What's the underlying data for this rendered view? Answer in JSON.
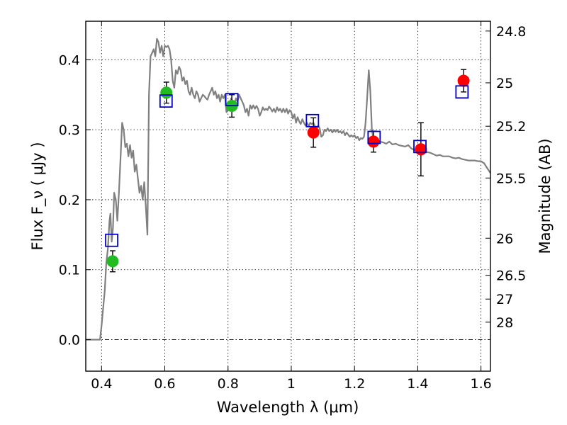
{
  "chart_data": {
    "type": "scatter",
    "xlabel": "Wavelength  λ (μm)",
    "ylabel": "Flux  F_ν  ( μJy )",
    "y2label": "Magnitude (AB)",
    "xlim": [
      0.35,
      1.63
    ],
    "ylim": [
      -0.045,
      0.455
    ],
    "xticks": [
      0.4,
      0.6,
      0.8,
      1.0,
      1.2,
      1.4,
      1.6
    ],
    "xtick_labels": [
      "0.4",
      "0.6",
      "0.8",
      "1",
      "1.2",
      "1.4",
      "1.6"
    ],
    "yticks": [
      0.0,
      0.1,
      0.2,
      0.3,
      0.4
    ],
    "ytick_labels": [
      "0.0",
      "0.1",
      "0.2",
      "0.3",
      "0.4"
    ],
    "y2ticks": [
      {
        "label": "24.8",
        "flux": 0.441
      },
      {
        "label": "25",
        "flux": 0.367
      },
      {
        "label": "25.2",
        "flux": 0.305
      },
      {
        "label": "25.5",
        "flux": 0.231
      },
      {
        "label": "26",
        "flux": 0.145
      },
      {
        "label": "26.5",
        "flux": 0.092
      },
      {
        "label": "27",
        "flux": 0.058
      },
      {
        "label": "28",
        "flux": 0.025
      }
    ],
    "grid": true,
    "zero_line": true,
    "colors": {
      "model": "#808080",
      "green": "#22bb22",
      "red": "#ff0000",
      "box": "#0000cc",
      "errorbar": "#000000"
    },
    "series": [
      {
        "type": "line",
        "color": "#808080",
        "points": [
          [
            0.35,
            0.0
          ],
          [
            0.395,
            0.0
          ],
          [
            0.4,
            0.02
          ],
          [
            0.41,
            0.07
          ],
          [
            0.415,
            0.11
          ],
          [
            0.42,
            0.13
          ],
          [
            0.425,
            0.17
          ],
          [
            0.428,
            0.18
          ],
          [
            0.432,
            0.14
          ],
          [
            0.436,
            0.16
          ],
          [
            0.44,
            0.21
          ],
          [
            0.445,
            0.2
          ],
          [
            0.45,
            0.17
          ],
          [
            0.455,
            0.21
          ],
          [
            0.46,
            0.26
          ],
          [
            0.465,
            0.31
          ],
          [
            0.47,
            0.3
          ],
          [
            0.475,
            0.275
          ],
          [
            0.48,
            0.28
          ],
          [
            0.485,
            0.262
          ],
          [
            0.49,
            0.278
          ],
          [
            0.495,
            0.26
          ],
          [
            0.5,
            0.27
          ],
          [
            0.505,
            0.24
          ],
          [
            0.51,
            0.25
          ],
          [
            0.515,
            0.23
          ],
          [
            0.52,
            0.21
          ],
          [
            0.525,
            0.22
          ],
          [
            0.53,
            0.2
          ],
          [
            0.535,
            0.225
          ],
          [
            0.54,
            0.19
          ],
          [
            0.545,
            0.15
          ],
          [
            0.55,
            0.35
          ],
          [
            0.555,
            0.405
          ],
          [
            0.56,
            0.41
          ],
          [
            0.565,
            0.415
          ],
          [
            0.57,
            0.405
          ],
          [
            0.575,
            0.43
          ],
          [
            0.58,
            0.425
          ],
          [
            0.585,
            0.41
          ],
          [
            0.59,
            0.42
          ],
          [
            0.595,
            0.405
          ],
          [
            0.6,
            0.42
          ],
          [
            0.605,
            0.418
          ],
          [
            0.61,
            0.42
          ],
          [
            0.615,
            0.415
          ],
          [
            0.62,
            0.4
          ],
          [
            0.625,
            0.37
          ],
          [
            0.63,
            0.36
          ],
          [
            0.635,
            0.385
          ],
          [
            0.64,
            0.38
          ],
          [
            0.645,
            0.39
          ],
          [
            0.65,
            0.385
          ],
          [
            0.655,
            0.37
          ],
          [
            0.66,
            0.375
          ],
          [
            0.665,
            0.365
          ],
          [
            0.67,
            0.37
          ],
          [
            0.675,
            0.355
          ],
          [
            0.68,
            0.35
          ],
          [
            0.685,
            0.36
          ],
          [
            0.69,
            0.35
          ],
          [
            0.695,
            0.345
          ],
          [
            0.7,
            0.355
          ],
          [
            0.705,
            0.35
          ],
          [
            0.71,
            0.34
          ],
          [
            0.715,
            0.345
          ],
          [
            0.72,
            0.35
          ],
          [
            0.725,
            0.348
          ],
          [
            0.73,
            0.345
          ],
          [
            0.735,
            0.343
          ],
          [
            0.74,
            0.35
          ],
          [
            0.745,
            0.355
          ],
          [
            0.75,
            0.36
          ],
          [
            0.755,
            0.35
          ],
          [
            0.76,
            0.355
          ],
          [
            0.765,
            0.345
          ],
          [
            0.77,
            0.35
          ],
          [
            0.775,
            0.34
          ],
          [
            0.78,
            0.35
          ],
          [
            0.785,
            0.345
          ],
          [
            0.79,
            0.35
          ],
          [
            0.795,
            0.325
          ],
          [
            0.8,
            0.33
          ],
          [
            0.805,
            0.335
          ],
          [
            0.81,
            0.345
          ],
          [
            0.815,
            0.34
          ],
          [
            0.82,
            0.335
          ],
          [
            0.825,
            0.345
          ],
          [
            0.83,
            0.34
          ],
          [
            0.835,
            0.35
          ],
          [
            0.84,
            0.345
          ],
          [
            0.845,
            0.34
          ],
          [
            0.85,
            0.335
          ],
          [
            0.855,
            0.325
          ],
          [
            0.86,
            0.33
          ],
          [
            0.865,
            0.32
          ],
          [
            0.87,
            0.335
          ],
          [
            0.875,
            0.33
          ],
          [
            0.88,
            0.335
          ],
          [
            0.885,
            0.33
          ],
          [
            0.89,
            0.334
          ],
          [
            0.895,
            0.33
          ],
          [
            0.9,
            0.32
          ],
          [
            0.905,
            0.325
          ],
          [
            0.91,
            0.332
          ],
          [
            0.915,
            0.328
          ],
          [
            0.92,
            0.33
          ],
          [
            0.925,
            0.328
          ],
          [
            0.93,
            0.333
          ],
          [
            0.935,
            0.33
          ],
          [
            0.94,
            0.326
          ],
          [
            0.945,
            0.33
          ],
          [
            0.95,
            0.325
          ],
          [
            0.955,
            0.332
          ],
          [
            0.96,
            0.327
          ],
          [
            0.965,
            0.33
          ],
          [
            0.97,
            0.325
          ],
          [
            0.975,
            0.33
          ],
          [
            0.98,
            0.325
          ],
          [
            0.985,
            0.33
          ],
          [
            0.99,
            0.323
          ],
          [
            0.995,
            0.328
          ],
          [
            1.0,
            0.325
          ],
          [
            1.005,
            0.316
          ],
          [
            1.01,
            0.322
          ],
          [
            1.015,
            0.31
          ],
          [
            1.02,
            0.318
          ],
          [
            1.025,
            0.312
          ],
          [
            1.03,
            0.308
          ],
          [
            1.035,
            0.315
          ],
          [
            1.04,
            0.31
          ],
          [
            1.045,
            0.306
          ],
          [
            1.05,
            0.31
          ],
          [
            1.055,
            0.305
          ],
          [
            1.06,
            0.31
          ],
          [
            1.065,
            0.308
          ],
          [
            1.07,
            0.31
          ],
          [
            1.075,
            0.305
          ],
          [
            1.08,
            0.3
          ],
          [
            1.085,
            0.306
          ],
          [
            1.09,
            0.302
          ],
          [
            1.095,
            0.29
          ],
          [
            1.1,
            0.292
          ],
          [
            1.105,
            0.3
          ],
          [
            1.11,
            0.298
          ],
          [
            1.115,
            0.302
          ],
          [
            1.12,
            0.298
          ],
          [
            1.125,
            0.3
          ],
          [
            1.13,
            0.296
          ],
          [
            1.135,
            0.3
          ],
          [
            1.14,
            0.297
          ],
          [
            1.145,
            0.3
          ],
          [
            1.15,
            0.296
          ],
          [
            1.155,
            0.298
          ],
          [
            1.16,
            0.295
          ],
          [
            1.165,
            0.298
          ],
          [
            1.17,
            0.292
          ],
          [
            1.175,
            0.296
          ],
          [
            1.18,
            0.293
          ],
          [
            1.185,
            0.29
          ],
          [
            1.19,
            0.292
          ],
          [
            1.195,
            0.29
          ],
          [
            1.2,
            0.292
          ],
          [
            1.205,
            0.288
          ],
          [
            1.21,
            0.29
          ],
          [
            1.215,
            0.285
          ],
          [
            1.22,
            0.288
          ],
          [
            1.225,
            0.287
          ],
          [
            1.23,
            0.29
          ],
          [
            1.235,
            0.31
          ],
          [
            1.24,
            0.345
          ],
          [
            1.245,
            0.385
          ],
          [
            1.25,
            0.355
          ],
          [
            1.255,
            0.3
          ],
          [
            1.26,
            0.286
          ],
          [
            1.27,
            0.285
          ],
          [
            1.28,
            0.283
          ],
          [
            1.29,
            0.282
          ],
          [
            1.3,
            0.28
          ],
          [
            1.31,
            0.283
          ],
          [
            1.32,
            0.279
          ],
          [
            1.33,
            0.28
          ],
          [
            1.34,
            0.278
          ],
          [
            1.35,
            0.277
          ],
          [
            1.36,
            0.276
          ],
          [
            1.37,
            0.278
          ],
          [
            1.38,
            0.273
          ],
          [
            1.39,
            0.271
          ],
          [
            1.4,
            0.268
          ],
          [
            1.41,
            0.27
          ],
          [
            1.42,
            0.27
          ],
          [
            1.43,
            0.268
          ],
          [
            1.44,
            0.267
          ],
          [
            1.45,
            0.265
          ],
          [
            1.46,
            0.263
          ],
          [
            1.47,
            0.264
          ],
          [
            1.48,
            0.262
          ],
          [
            1.49,
            0.262
          ],
          [
            1.5,
            0.262
          ],
          [
            1.51,
            0.26
          ],
          [
            1.52,
            0.259
          ],
          [
            1.53,
            0.26
          ],
          [
            1.54,
            0.258
          ],
          [
            1.55,
            0.257
          ],
          [
            1.56,
            0.256
          ],
          [
            1.57,
            0.256
          ],
          [
            1.58,
            0.256
          ],
          [
            1.59,
            0.255
          ],
          [
            1.6,
            0.255
          ],
          [
            1.61,
            0.252
          ],
          [
            1.62,
            0.245
          ],
          [
            1.63,
            0.238
          ]
        ]
      },
      {
        "type": "errorbar",
        "color": "#22bb22",
        "points": [
          {
            "x": 0.435,
            "y": 0.112,
            "err": 0.015
          },
          {
            "x": 0.605,
            "y": 0.353,
            "err": 0.015
          },
          {
            "x": 0.812,
            "y": 0.334,
            "err": 0.016
          }
        ]
      },
      {
        "type": "errorbar",
        "color": "#ff0000",
        "points": [
          {
            "x": 1.07,
            "y": 0.296,
            "err": 0.021
          },
          {
            "x": 1.26,
            "y": 0.283,
            "err": 0.015
          },
          {
            "x": 1.41,
            "y": 0.272,
            "err": 0.038
          },
          {
            "x": 1.545,
            "y": 0.37,
            "err": 0.016
          }
        ]
      },
      {
        "type": "square",
        "color": "#0000cc",
        "points": [
          {
            "x": 0.432,
            "y": 0.142
          },
          {
            "x": 0.604,
            "y": 0.341
          },
          {
            "x": 0.812,
            "y": 0.343
          },
          {
            "x": 1.067,
            "y": 0.313
          },
          {
            "x": 1.262,
            "y": 0.289
          },
          {
            "x": 1.407,
            "y": 0.276
          },
          {
            "x": 1.54,
            "y": 0.354
          }
        ]
      }
    ]
  }
}
